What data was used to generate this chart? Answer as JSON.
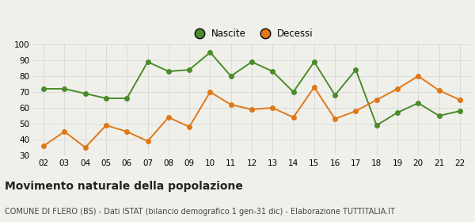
{
  "years": [
    "02",
    "03",
    "04",
    "05",
    "06",
    "07",
    "08",
    "09",
    "10",
    "11",
    "12",
    "13",
    "14",
    "15",
    "16",
    "17",
    "18",
    "19",
    "20",
    "21",
    "22"
  ],
  "nascite": [
    72,
    72,
    69,
    66,
    66,
    89,
    83,
    84,
    95,
    80,
    89,
    83,
    70,
    89,
    68,
    84,
    49,
    57,
    63,
    55,
    58
  ],
  "decessi": [
    36,
    45,
    35,
    49,
    45,
    39,
    54,
    48,
    70,
    62,
    59,
    60,
    54,
    73,
    53,
    58,
    65,
    72,
    80,
    71,
    65
  ],
  "nascite_color": "#4a8c2a",
  "decessi_color": "#e07818",
  "background_color": "#f0f0eb",
  "grid_color": "#d8d8d8",
  "ylim": [
    30,
    100
  ],
  "yticks": [
    30,
    40,
    50,
    60,
    70,
    80,
    90,
    100
  ],
  "title": "Movimento naturale della popolazione",
  "subtitle": "COMUNE DI FLERO (BS) - Dati ISTAT (bilancio demografico 1 gen-31 dic) - Elaborazione TUTTITALIA.IT",
  "legend_nascite": "Nascite",
  "legend_decessi": "Decessi",
  "title_fontsize": 10,
  "subtitle_fontsize": 7,
  "tick_fontsize": 7.5,
  "legend_fontsize": 8.5,
  "marker_size": 4,
  "linewidth": 1.4
}
